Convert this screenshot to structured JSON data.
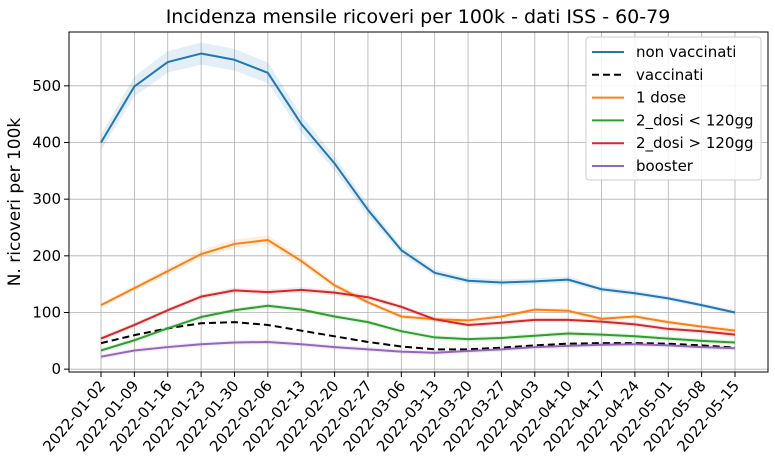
{
  "chart_data": {
    "type": "line",
    "title": "Incidenza mensile ricoveri per 100k - dati ISS - 60-79",
    "xlabel": "",
    "ylabel": "N. ricoveri per 100k",
    "ylim": [
      -5,
      595
    ],
    "yticks": [
      0,
      100,
      200,
      300,
      400,
      500
    ],
    "grid": true,
    "legend_position": "top-right",
    "x": [
      "2022-01-02",
      "2022-01-09",
      "2022-01-16",
      "2022-01-23",
      "2022-01-30",
      "2022-02-06",
      "2022-02-13",
      "2022-02-20",
      "2022-02-27",
      "2022-03-06",
      "2022-03-13",
      "2022-03-20",
      "2022-03-27",
      "2022-04-03",
      "2022-04-10",
      "2022-04-17",
      "2022-04-24",
      "2022-05-01",
      "2022-05-08",
      "2022-05-15"
    ],
    "series": [
      {
        "name": "non vaccinati",
        "color": "#1f77b4",
        "dash": "solid",
        "band": true,
        "values": [
          400,
          499,
          542,
          557,
          546,
          523,
          433,
          363,
          281,
          210,
          170,
          156,
          153,
          155,
          158,
          141,
          134,
          125,
          113,
          100
        ]
      },
      {
        "name": "vaccinati",
        "color": "#000000",
        "dash": "dashed",
        "band": false,
        "values": [
          46,
          60,
          72,
          81,
          83,
          78,
          68,
          58,
          48,
          40,
          35,
          35,
          38,
          42,
          45,
          46,
          46,
          45,
          42,
          38
        ]
      },
      {
        "name": "1 dose",
        "color": "#ff7f0e",
        "dash": "solid",
        "band": true,
        "values": [
          113,
          143,
          173,
          203,
          221,
          228,
          191,
          148,
          118,
          93,
          88,
          86,
          93,
          105,
          103,
          89,
          93,
          83,
          75,
          68
        ]
      },
      {
        "name": "2_dosi < 120gg",
        "color": "#2ca02c",
        "dash": "solid",
        "band": true,
        "values": [
          33,
          51,
          72,
          92,
          104,
          112,
          105,
          93,
          83,
          67,
          56,
          53,
          55,
          59,
          63,
          61,
          58,
          54,
          50,
          47
        ]
      },
      {
        "name": "2_dosi > 120gg",
        "color": "#d62728",
        "dash": "solid",
        "band": true,
        "values": [
          54,
          78,
          104,
          128,
          139,
          136,
          140,
          135,
          127,
          110,
          88,
          78,
          82,
          87,
          87,
          84,
          79,
          71,
          67,
          61
        ]
      },
      {
        "name": "booster",
        "color": "#9467bd",
        "dash": "solid",
        "band": true,
        "values": [
          22,
          33,
          39,
          44,
          47,
          48,
          44,
          39,
          35,
          31,
          29,
          32,
          35,
          39,
          41,
          43,
          44,
          42,
          39,
          37
        ]
      }
    ]
  }
}
